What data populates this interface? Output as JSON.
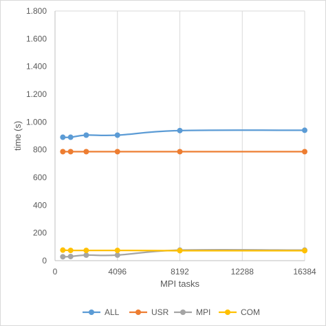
{
  "chart_data": {
    "type": "line",
    "xlabel": "MPI tasks",
    "ylabel": "time (s)",
    "xlim": [
      0,
      16384
    ],
    "ylim": [
      0,
      1800
    ],
    "x_ticks": [
      0,
      4096,
      8192,
      12288,
      16384
    ],
    "x_tick_labels": [
      "0",
      "4096",
      "8192",
      "12288",
      "16384"
    ],
    "y_ticks": [
      0,
      200,
      400,
      600,
      800,
      1000,
      1200,
      1400,
      1600,
      1800
    ],
    "y_tick_labels": [
      "0",
      "200",
      "400",
      "600",
      "800",
      "1.000",
      "1.200",
      "1.400",
      "1.600",
      "1.800"
    ],
    "grid": "vertical",
    "legend_position": "bottom",
    "series": [
      {
        "name": "ALL",
        "color": "#5b9bd5",
        "x": [
          512,
          1024,
          2048,
          4096,
          8192,
          16384
        ],
        "y": [
          890,
          890,
          905,
          905,
          938,
          940
        ]
      },
      {
        "name": "USR",
        "color": "#ed7d31",
        "x": [
          512,
          1024,
          2048,
          4096,
          8192,
          16384
        ],
        "y": [
          786,
          786,
          786,
          786,
          786,
          786
        ]
      },
      {
        "name": "MPI",
        "color": "#a5a5a5",
        "x": [
          512,
          1024,
          2048,
          4096,
          8192,
          16384
        ],
        "y": [
          28,
          30,
          40,
          40,
          76,
          76
        ]
      },
      {
        "name": "COM",
        "color": "#ffc000",
        "x": [
          512,
          1024,
          2048,
          4096,
          8192,
          16384
        ],
        "y": [
          76,
          74,
          74,
          74,
          72,
          72
        ]
      }
    ]
  }
}
